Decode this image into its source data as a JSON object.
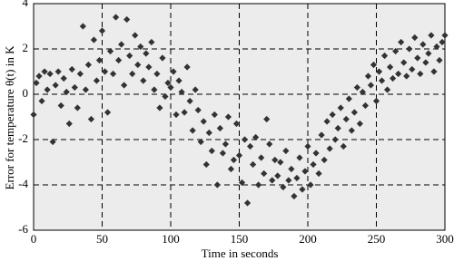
{
  "chart_data": {
    "type": "scatter",
    "xlabel": "Time in seconds",
    "ylabel": "Error for temperature θ(t) in K",
    "xlim": [
      0,
      300
    ],
    "ylim": [
      -6,
      4
    ],
    "xticks": [
      0,
      50,
      100,
      150,
      200,
      250,
      300
    ],
    "yticks": [
      -6,
      -4,
      -2,
      0,
      2,
      4
    ],
    "grid": true,
    "color": "#333333",
    "x": [
      0,
      2,
      4,
      6,
      8,
      10,
      12,
      14,
      16,
      18,
      20,
      22,
      24,
      26,
      28,
      30,
      32,
      34,
      36,
      38,
      40,
      42,
      44,
      46,
      48,
      50,
      52,
      54,
      56,
      58,
      60,
      62,
      64,
      66,
      68,
      70,
      72,
      74,
      76,
      78,
      80,
      82,
      84,
      86,
      88,
      90,
      92,
      94,
      96,
      98,
      100,
      102,
      104,
      106,
      108,
      110,
      112,
      114,
      116,
      118,
      120,
      122,
      124,
      126,
      128,
      130,
      132,
      134,
      136,
      138,
      140,
      142,
      144,
      146,
      148,
      150,
      152,
      154,
      156,
      158,
      160,
      162,
      164,
      166,
      168,
      170,
      172,
      174,
      176,
      178,
      180,
      182,
      184,
      186,
      188,
      190,
      192,
      194,
      196,
      198,
      200,
      202,
      204,
      206,
      208,
      210,
      212,
      214,
      216,
      218,
      220,
      222,
      224,
      226,
      228,
      230,
      232,
      234,
      236,
      238,
      240,
      242,
      244,
      246,
      248,
      250,
      252,
      254,
      256,
      258,
      260,
      262,
      264,
      266,
      268,
      270,
      272,
      274,
      276,
      278,
      280,
      282,
      284,
      286,
      288,
      290,
      292,
      294,
      296,
      298,
      300
    ],
    "values": [
      -0.9,
      0.5,
      0.8,
      -0.3,
      1.0,
      0.2,
      0.9,
      -2.1,
      0.4,
      1.0,
      -0.5,
      0.7,
      0.1,
      -1.3,
      1.1,
      0.3,
      -0.6,
      0.9,
      3.0,
      0.2,
      1.3,
      -1.1,
      2.4,
      0.6,
      1.5,
      2.8,
      1.0,
      -0.8,
      1.9,
      0.9,
      3.4,
      1.5,
      2.2,
      0.4,
      3.3,
      1.7,
      0.9,
      2.6,
      1.3,
      2.1,
      0.6,
      1.8,
      1.2,
      2.3,
      0.2,
      0.9,
      -0.6,
      1.6,
      -0.1,
      0.5,
      0.3,
      1.0,
      -0.9,
      0.6,
      0.1,
      -0.8,
      1.2,
      -0.3,
      -1.6,
      0.2,
      -0.7,
      -2.1,
      -1.2,
      -3.1,
      -1.7,
      -2.5,
      -0.9,
      -4.0,
      -1.5,
      -2.6,
      -2.2,
      -1.0,
      -3.3,
      -2.9,
      -1.3,
      -2.7,
      -3.9,
      -2.0,
      -4.8,
      -2.3,
      -3.1,
      -1.9,
      -4.0,
      -2.8,
      -3.5,
      -1.1,
      -2.2,
      -3.8,
      -2.9,
      -3.6,
      -3.0,
      -4.1,
      -2.5,
      -3.8,
      -3.3,
      -4.5,
      -3.7,
      -2.8,
      -4.2,
      -3.4,
      -2.3,
      -4.0,
      -3.1,
      -2.6,
      -3.5,
      -1.8,
      -2.9,
      -1.2,
      -2.4,
      -0.9,
      -2.0,
      -1.5,
      -0.6,
      -2.3,
      -1.1,
      -0.2,
      -1.6,
      -0.8,
      0.3,
      -1.3,
      0.1,
      -0.5,
      0.8,
      0.4,
      1.3,
      -0.3,
      1.0,
      0.6,
      1.7,
      0.2,
      1.2,
      0.7,
      1.9,
      0.9,
      2.3,
      1.4,
      0.8,
      2.0,
      1.1,
      2.5,
      1.6,
      0.9,
      2.2,
      1.4,
      1.8,
      2.6,
      1.0,
      2.1,
      1.5,
      2.3,
      2.6
    ]
  }
}
